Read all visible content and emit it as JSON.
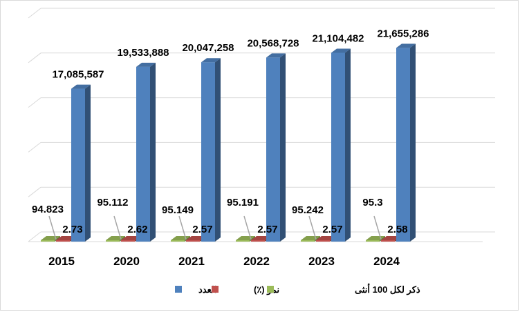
{
  "chart_data": {
    "type": "bar",
    "categories": [
      "2015",
      "2020",
      "2021",
      "2022",
      "2023",
      "2024"
    ],
    "series": [
      {
        "name": "ذكر لكل 100 أنثى",
        "values": [
          94.823,
          95.112,
          95.149,
          95.191,
          95.242,
          95.3
        ],
        "labels": [
          "94.823",
          "95.112",
          "95.149",
          "95.191",
          "95.242",
          "95.3"
        ],
        "color": "#9bbb59"
      },
      {
        "name": "نمو (٪)",
        "values": [
          2.73,
          2.62,
          2.57,
          2.57,
          2.57,
          2.58
        ],
        "labels": [
          "2.73",
          "2.62",
          "2.57",
          "2.57",
          "2.57",
          "2.58"
        ],
        "color": "#c0504d"
      },
      {
        "name": "العدد",
        "values": [
          17085587,
          19533888,
          20047258,
          20568728,
          21104482,
          21655286
        ],
        "labels": [
          "17,085,587",
          "19,533,888",
          "20,047,258",
          "20,568,728",
          "21,104,482",
          "21,655,286"
        ],
        "color": "#4f81bd"
      }
    ],
    "ylim": [
      0,
      25000000
    ],
    "grid": true,
    "three_d": true,
    "legend_position": "bottom"
  }
}
